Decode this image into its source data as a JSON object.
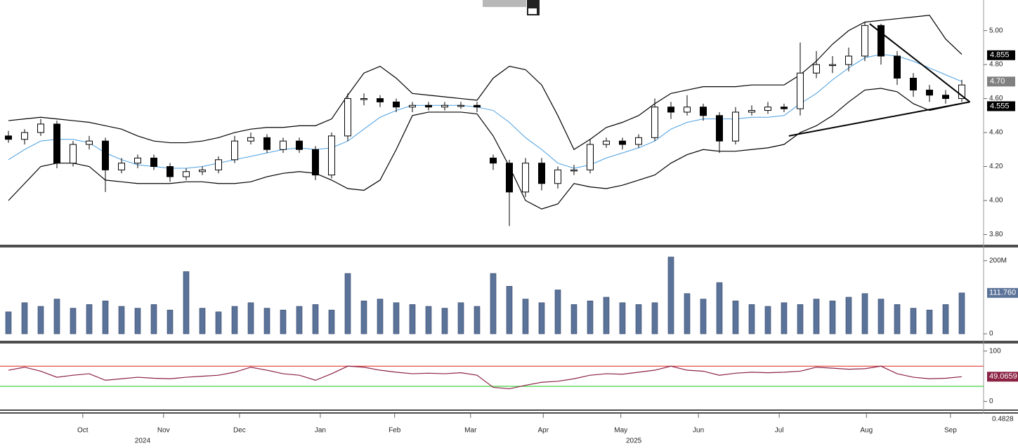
{
  "chart_data": [
    {
      "type": "candlestick",
      "ylim": [
        3.74,
        5.18
      ],
      "yticks": [
        {
          "value": 3.8,
          "label": "3.80"
        },
        {
          "value": 4.0,
          "label": "4.00"
        },
        {
          "value": 4.2,
          "label": "4.20"
        },
        {
          "value": 4.4,
          "label": "4.40"
        },
        {
          "value": 4.6,
          "label": "4.60"
        },
        {
          "value": 4.8,
          "label": "4.80"
        },
        {
          "value": 5.0,
          "label": "5.00"
        }
      ],
      "open": [
        4.38,
        4.36,
        4.4,
        4.45,
        4.22,
        4.33,
        4.35,
        4.18,
        4.22,
        4.25,
        4.2,
        4.14,
        4.17,
        4.18,
        4.24,
        4.35,
        4.37,
        4.3,
        4.35,
        4.3,
        4.15,
        4.38,
        4.6,
        4.6,
        4.58,
        4.55,
        4.56,
        4.55,
        4.56,
        4.56,
        4.25,
        4.22,
        4.05,
        4.22,
        4.1,
        4.18,
        4.18,
        4.33,
        4.35,
        4.33,
        4.37,
        4.55,
        4.52,
        4.55,
        4.5,
        4.35,
        4.52,
        4.53,
        4.55,
        4.54,
        4.75,
        4.8,
        4.8,
        4.85,
        5.03,
        4.85,
        4.72,
        4.65,
        4.62,
        4.6
      ],
      "high": [
        4.41,
        4.42,
        4.48,
        4.47,
        4.35,
        4.38,
        4.37,
        4.25,
        4.27,
        4.27,
        4.22,
        4.19,
        4.2,
        4.26,
        4.38,
        4.4,
        4.39,
        4.37,
        4.37,
        4.32,
        4.4,
        4.63,
        4.63,
        4.62,
        4.6,
        4.58,
        4.58,
        4.58,
        4.58,
        4.58,
        4.27,
        4.24,
        4.25,
        4.25,
        4.2,
        4.21,
        4.36,
        4.37,
        4.37,
        4.39,
        4.6,
        4.58,
        4.62,
        4.57,
        4.52,
        4.55,
        4.56,
        4.58,
        4.57,
        4.93,
        4.88,
        4.85,
        4.9,
        5.05,
        5.04,
        4.88,
        4.75,
        4.68,
        4.65,
        4.71
      ],
      "low": [
        4.34,
        4.33,
        4.38,
        4.19,
        4.2,
        4.3,
        4.05,
        4.16,
        4.19,
        4.18,
        4.11,
        4.12,
        4.15,
        4.16,
        4.22,
        4.33,
        4.28,
        4.28,
        4.28,
        4.12,
        4.13,
        4.35,
        4.56,
        4.55,
        4.52,
        4.52,
        4.53,
        4.53,
        4.54,
        4.52,
        4.18,
        3.85,
        4.02,
        4.06,
        4.07,
        4.15,
        4.16,
        4.31,
        4.3,
        4.31,
        4.35,
        4.48,
        4.5,
        4.47,
        4.28,
        4.33,
        4.5,
        4.51,
        4.52,
        4.5,
        4.72,
        4.75,
        4.76,
        4.82,
        4.8,
        4.68,
        4.61,
        4.58,
        4.57,
        4.58
      ],
      "close": [
        4.36,
        4.4,
        4.45,
        4.22,
        4.33,
        4.35,
        4.18,
        4.22,
        4.25,
        4.2,
        4.14,
        4.17,
        4.18,
        4.24,
        4.35,
        4.37,
        4.3,
        4.35,
        4.3,
        4.15,
        4.38,
        4.6,
        4.6,
        4.58,
        4.55,
        4.56,
        4.55,
        4.56,
        4.56,
        4.55,
        4.22,
        4.05,
        4.22,
        4.1,
        4.18,
        4.18,
        4.33,
        4.35,
        4.33,
        4.37,
        4.55,
        4.52,
        4.55,
        4.5,
        4.35,
        4.52,
        4.53,
        4.55,
        4.54,
        4.75,
        4.8,
        4.8,
        4.85,
        5.03,
        4.85,
        4.72,
        4.65,
        4.62,
        4.6,
        4.68
      ],
      "series": [
        {
          "color": "#000000",
          "values": [
            4.47,
            4.48,
            4.49,
            4.48,
            4.47,
            4.46,
            4.44,
            4.42,
            4.38,
            4.35,
            4.34,
            4.34,
            4.35,
            4.37,
            4.4,
            4.42,
            4.43,
            4.43,
            4.44,
            4.44,
            4.48,
            4.62,
            4.75,
            4.79,
            4.72,
            4.63,
            4.62,
            4.61,
            4.6,
            4.59,
            4.72,
            4.79,
            4.77,
            4.68,
            4.5,
            4.3,
            4.36,
            4.43,
            4.46,
            4.5,
            4.57,
            4.63,
            4.65,
            4.67,
            4.67,
            4.67,
            4.68,
            4.68,
            4.68,
            4.74,
            4.82,
            4.92,
            5.0,
            5.05,
            5.06,
            5.07,
            5.08,
            5.09,
            4.95,
            4.86
          ]
        },
        {
          "color": "#4a9fe0",
          "values": [
            4.24,
            4.3,
            4.35,
            4.36,
            4.36,
            4.34,
            4.28,
            4.24,
            4.21,
            4.2,
            4.19,
            4.19,
            4.2,
            4.22,
            4.24,
            4.26,
            4.28,
            4.3,
            4.31,
            4.3,
            4.31,
            4.35,
            4.42,
            4.49,
            4.53,
            4.56,
            4.56,
            4.56,
            4.56,
            4.55,
            4.53,
            4.46,
            4.37,
            4.3,
            4.22,
            4.19,
            4.21,
            4.25,
            4.28,
            4.31,
            4.35,
            4.42,
            4.46,
            4.48,
            4.48,
            4.48,
            4.49,
            4.49,
            4.5,
            4.57,
            4.63,
            4.71,
            4.78,
            4.84,
            4.86,
            4.85,
            4.82,
            4.78,
            4.74,
            4.7
          ]
        },
        {
          "color": "#000000",
          "values": [
            4.0,
            4.1,
            4.2,
            4.22,
            4.22,
            4.2,
            4.12,
            4.11,
            4.1,
            4.1,
            4.1,
            4.11,
            4.11,
            4.1,
            4.1,
            4.11,
            4.14,
            4.16,
            4.17,
            4.16,
            4.12,
            4.07,
            4.06,
            4.12,
            4.3,
            4.5,
            4.52,
            4.52,
            4.52,
            4.51,
            4.38,
            4.2,
            4.0,
            3.95,
            3.98,
            4.1,
            4.08,
            4.07,
            4.09,
            4.12,
            4.15,
            4.22,
            4.27,
            4.3,
            4.29,
            4.29,
            4.3,
            4.31,
            4.33,
            4.4,
            4.44,
            4.5,
            4.58,
            4.65,
            4.66,
            4.64,
            4.57,
            4.53,
            4.55,
            4.57
          ]
        }
      ],
      "trendlines": [
        {
          "x": [
            53.3,
            59.5
          ],
          "y": [
            5.04,
            4.58
          ]
        },
        {
          "x": [
            48.3,
            59.5
          ],
          "y": [
            4.38,
            4.58
          ]
        }
      ],
      "last_labels": [
        {
          "value": 4.855,
          "color": "#000000"
        },
        {
          "value": 4.7,
          "label": "4.70",
          "color": "#808080"
        },
        {
          "value": 4.555,
          "color": "#000000"
        }
      ]
    },
    {
      "type": "bar",
      "color": "#5c7399",
      "ylim": [
        -19,
        236
      ],
      "yticks": [
        0,
        {
          "value": 200,
          "label": "200M"
        }
      ],
      "values": [
        60,
        85,
        75,
        95,
        70,
        80,
        90,
        75,
        70,
        80,
        65,
        170,
        70,
        60,
        75,
        85,
        70,
        65,
        75,
        80,
        65,
        165,
        90,
        95,
        85,
        80,
        75,
        70,
        85,
        75,
        165,
        130,
        95,
        85,
        120,
        80,
        90,
        100,
        85,
        80,
        85,
        210,
        110,
        95,
        140,
        90,
        80,
        75,
        85,
        80,
        95,
        90,
        100,
        110,
        95,
        80,
        70,
        65,
        80,
        111.76
      ],
      "last_label": {
        "value": 111.76,
        "label": "111.760"
      }
    },
    {
      "type": "line",
      "color": "#8b2244",
      "ylim": [
        -16,
        115
      ],
      "yticks": [
        0,
        100
      ],
      "levels": [
        {
          "value": 70,
          "color": "#e23c3c"
        },
        {
          "value": 30,
          "color": "#3fd13f"
        }
      ],
      "values": [
        62,
        68,
        60,
        48,
        52,
        55,
        42,
        45,
        48,
        46,
        45,
        48,
        50,
        52,
        58,
        68,
        62,
        55,
        52,
        42,
        55,
        70,
        68,
        62,
        58,
        55,
        56,
        55,
        57,
        52,
        28,
        25,
        32,
        38,
        40,
        45,
        52,
        55,
        54,
        58,
        62,
        70,
        62,
        60,
        52,
        56,
        58,
        57,
        58,
        60,
        68,
        66,
        64,
        65,
        70,
        55,
        48,
        45,
        46,
        49.0659
      ],
      "last_label": 49.0659,
      "extra_label": "0.4828",
      "xlim": [
        0,
        59
      ],
      "xticks": [
        {
          "value": 4.6,
          "label": "Oct"
        },
        {
          "value": 9.6,
          "label": "Nov"
        },
        {
          "value": 14.3,
          "label": "Dec"
        },
        {
          "value": 19.3,
          "label": "Jan"
        },
        {
          "value": 23.9,
          "label": "Feb"
        },
        {
          "value": 28.6,
          "label": "Mar"
        },
        {
          "value": 33.1,
          "label": "Apr"
        },
        {
          "value": 37.9,
          "label": "May"
        },
        {
          "value": 42.7,
          "label": "Jun"
        },
        {
          "value": 47.7,
          "label": "Jul"
        },
        {
          "value": 53.1,
          "label": "Aug"
        },
        {
          "value": 58.3,
          "label": "Sep"
        }
      ],
      "years": [
        {
          "at": 8.3,
          "label": "2024"
        },
        {
          "at": 38.7,
          "label": "2025"
        }
      ]
    }
  ]
}
